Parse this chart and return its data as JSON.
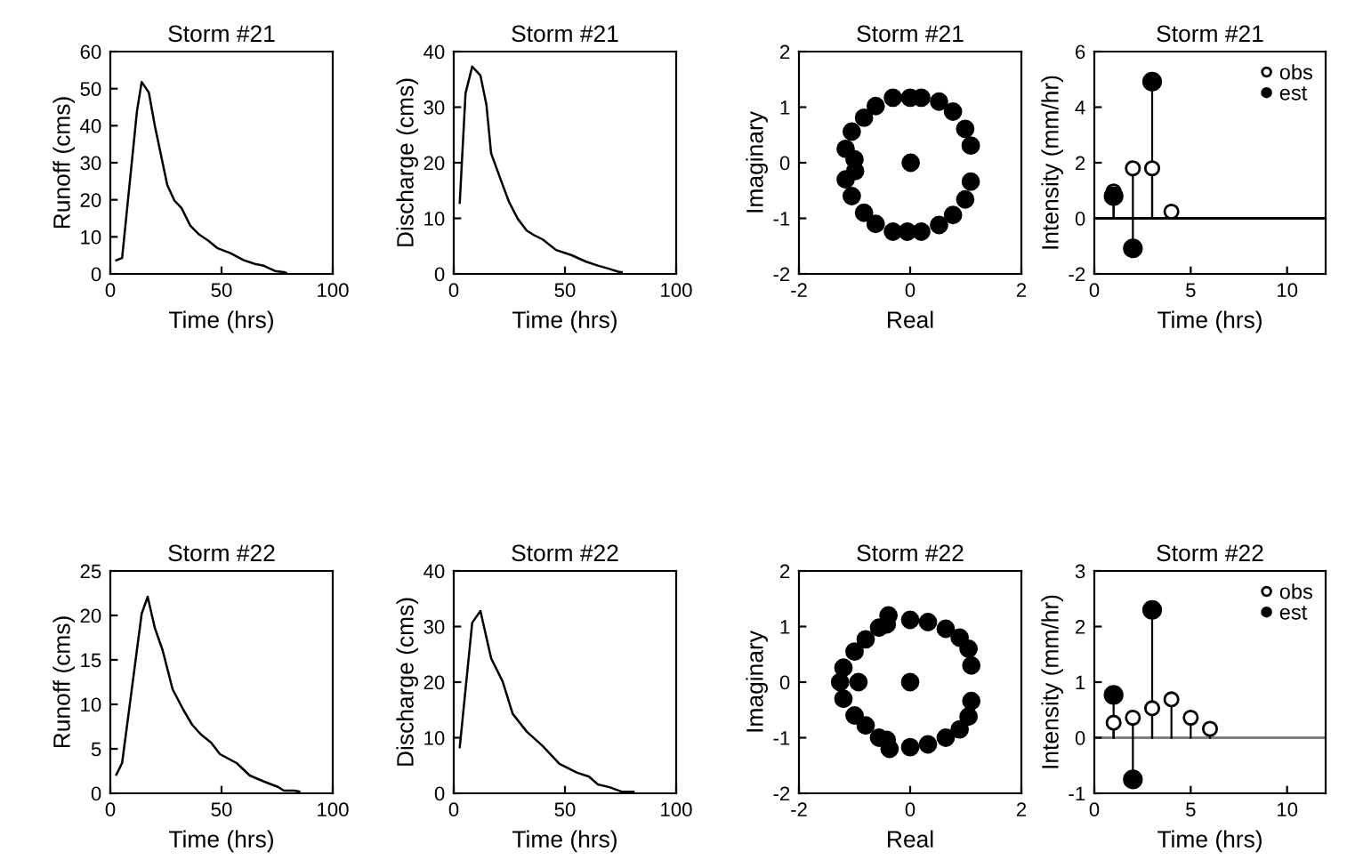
{
  "chart_data": [
    {
      "type": "line",
      "title": "Storm #21",
      "xlabel": "Time (hrs)",
      "ylabel": "Runoff (cms)",
      "xlim": [
        0,
        100
      ],
      "ylim": [
        0,
        60
      ],
      "xticks": [
        0,
        50,
        100
      ],
      "yticks": [
        0,
        10,
        20,
        30,
        40,
        50,
        60
      ],
      "grid": false,
      "legend": false,
      "series": [
        {
          "color": "#000000",
          "x": [
            2.7,
            5.3,
            12,
            14.1,
            17.3,
            20,
            25.6,
            28.8,
            32,
            36,
            40,
            44,
            48,
            54,
            60,
            65,
            69,
            74,
            78,
            79
          ],
          "values": [
            3.7,
            4.3,
            44,
            51.8,
            49,
            40,
            24,
            19.8,
            17.8,
            13,
            10.6,
            9,
            7,
            5.6,
            3.7,
            2.7,
            2.2,
            0.8,
            0.5,
            0.3
          ]
        }
      ]
    },
    {
      "type": "line",
      "title": "Storm #21",
      "xlabel": "Time (hrs)",
      "ylabel": "Discharge (cms)",
      "xlim": [
        0,
        100
      ],
      "ylim": [
        0,
        40
      ],
      "xticks": [
        0,
        50,
        100
      ],
      "yticks": [
        0,
        10,
        20,
        30,
        40
      ],
      "grid": false,
      "legend": false,
      "series": [
        {
          "color": "#000000",
          "x": [
            2.7,
            5.3,
            8.3,
            12,
            14.7,
            16.8,
            20.8,
            24.8,
            28.8,
            32.8,
            36,
            40,
            46,
            52.8,
            59.5,
            64.8,
            70,
            74,
            75.5
          ],
          "values": [
            12.8,
            32.5,
            37.3,
            35.7,
            30.4,
            21.7,
            17.3,
            13,
            9.9,
            7.8,
            7,
            6.2,
            4.3,
            3.4,
            2.2,
            1.5,
            0.9,
            0.4,
            0.3
          ]
        }
      ]
    },
    {
      "type": "scatter",
      "title": "Storm #21",
      "xlabel": "Real",
      "ylabel": "Imaginary",
      "xlim": [
        -2,
        2
      ],
      "ylim": [
        -2,
        2
      ],
      "xticks": [
        -2,
        0,
        2
      ],
      "yticks": [
        -2,
        -1,
        0,
        1,
        2
      ],
      "grid": false,
      "legend": false,
      "marker": "circle",
      "series": [
        {
          "color": "#000000",
          "x": [
            -0.31,
            0,
            0.2,
            0.52,
            0.77,
            0.99,
            1.09,
            1.09,
            0.99,
            0.77,
            0.52,
            0.2,
            -0.05,
            -0.31,
            -0.62,
            -0.83,
            -1.05,
            -1.16,
            -0.99,
            -1.0,
            -1.16,
            -1.05,
            -0.83,
            -0.62,
            0.01
          ],
          "values": [
            1.17,
            1.17,
            1.17,
            1.1,
            0.92,
            0.61,
            0.31,
            -0.34,
            -0.66,
            -0.94,
            -1.12,
            -1.24,
            -1.24,
            -1.24,
            -1.1,
            -0.9,
            -0.6,
            -0.3,
            -0.15,
            0.06,
            0.25,
            0.56,
            0.81,
            1.02,
            0.0
          ]
        }
      ]
    },
    {
      "type": "lollipop",
      "title": "Storm #21",
      "xlabel": "Time (hrs)",
      "ylabel": "Intensity (mm/hr)",
      "xlim": [
        0,
        12
      ],
      "ylim": [
        -2,
        6
      ],
      "xticks": [
        0,
        5,
        10
      ],
      "yticks": [
        -2,
        0,
        2,
        4,
        6
      ],
      "grid": false,
      "legend": "top right",
      "marker": "circle",
      "ref_lines": [
        {
          "axis": "y",
          "value": 0,
          "color": "#000000"
        }
      ],
      "series": [
        {
          "name": "obs",
          "color": "#ffffff",
          "x": [
            1,
            2,
            3,
            4
          ],
          "values": [
            0.97,
            1.8,
            1.8,
            0.24
          ]
        },
        {
          "name": "est",
          "color": "#000000",
          "x": [
            1,
            2,
            3
          ],
          "values": [
            0.8,
            -1.08,
            4.92
          ]
        }
      ]
    },
    {
      "type": "line",
      "title": "Storm #22",
      "xlabel": "Time (hrs)",
      "ylabel": "Runoff (cms)",
      "xlim": [
        0,
        100
      ],
      "ylim": [
        0,
        25
      ],
      "xticks": [
        0,
        50,
        100
      ],
      "yticks": [
        0,
        5,
        10,
        15,
        20,
        25
      ],
      "grid": false,
      "legend": false,
      "series": [
        {
          "color": "#000000",
          "x": [
            2.7,
            5.3,
            14.1,
            16.8,
            20,
            23.5,
            28,
            32.8,
            36.8,
            40.8,
            45.3,
            49.3,
            56.8,
            62.7,
            69.3,
            75.5,
            78,
            82.7,
            85
          ],
          "values": [
            2.1,
            3.4,
            20.2,
            22.1,
            18.6,
            16.1,
            11.7,
            9.4,
            7.7,
            6.6,
            5.7,
            4.4,
            3.4,
            2,
            1.3,
            0.7,
            0.3,
            0.3,
            0.2
          ]
        }
      ]
    },
    {
      "type": "line",
      "title": "Storm #22",
      "xlabel": "Time (hrs)",
      "ylabel": "Discharge (cms)",
      "xlim": [
        0,
        100
      ],
      "ylim": [
        0,
        40
      ],
      "xticks": [
        0,
        50,
        100
      ],
      "yticks": [
        0,
        10,
        20,
        30,
        40
      ],
      "grid": false,
      "legend": false,
      "series": [
        {
          "color": "#000000",
          "x": [
            2.7,
            8.3,
            12,
            16.8,
            22,
            26.5,
            32.8,
            40,
            47.5,
            55.5,
            60.8,
            64.8,
            70,
            75.5,
            80.8
          ],
          "values": [
            8.3,
            30.7,
            32.8,
            24.3,
            20.1,
            14.3,
            11.1,
            8.5,
            5.3,
            3.7,
            3,
            1.6,
            1.1,
            0.3,
            0.3
          ]
        }
      ]
    },
    {
      "type": "scatter",
      "title": "Storm #22",
      "xlabel": "Real",
      "ylabel": "Imaginary",
      "xlim": [
        -2,
        2
      ],
      "ylim": [
        -2,
        2
      ],
      "xticks": [
        -2,
        0,
        2
      ],
      "yticks": [
        -2,
        -1,
        0,
        1,
        2
      ],
      "grid": false,
      "legend": false,
      "marker": "circle",
      "series": [
        {
          "color": "#000000",
          "x": [
            -0.39,
            -0.42,
            -0.56,
            -0.8,
            -1.0,
            -1.2,
            -1.26,
            -0.93,
            -1.2,
            -1.0,
            -0.8,
            -0.56,
            -0.42,
            -0.37,
            0,
            0.32,
            0.64,
            0.89,
            1.05,
            1.1,
            1.1,
            1.05,
            0.89,
            0.64,
            0.32,
            0,
            0
          ],
          "values": [
            1.2,
            1.04,
            0.98,
            0.77,
            0.55,
            0.26,
            0.0,
            0.0,
            -0.3,
            -0.6,
            -0.78,
            -1.0,
            -1.04,
            -1.2,
            -1.17,
            -1.12,
            -1.0,
            -0.85,
            -0.62,
            -0.34,
            0.3,
            0.6,
            0.8,
            0.96,
            1.08,
            1.12,
            0.0
          ]
        }
      ]
    },
    {
      "type": "lollipop",
      "title": "Storm #22",
      "xlabel": "Time (hrs)",
      "ylabel": "Intensity (mm/hr)",
      "xlim": [
        0,
        12
      ],
      "ylim": [
        -1,
        3
      ],
      "xticks": [
        0,
        5,
        10
      ],
      "yticks": [
        -1,
        0,
        1,
        2,
        3
      ],
      "grid": false,
      "legend": "top right",
      "marker": "circle",
      "ref_lines": [
        {
          "axis": "y",
          "value": 0,
          "color": "#808080"
        }
      ],
      "series": [
        {
          "name": "obs",
          "color": "#ffffff",
          "x": [
            1,
            2,
            3,
            4,
            5,
            6
          ],
          "values": [
            0.27,
            0.36,
            0.53,
            0.69,
            0.36,
            0.16
          ]
        },
        {
          "name": "est",
          "color": "#000000",
          "x": [
            1,
            2,
            3
          ],
          "values": [
            0.77,
            -0.75,
            2.3
          ]
        }
      ]
    }
  ]
}
